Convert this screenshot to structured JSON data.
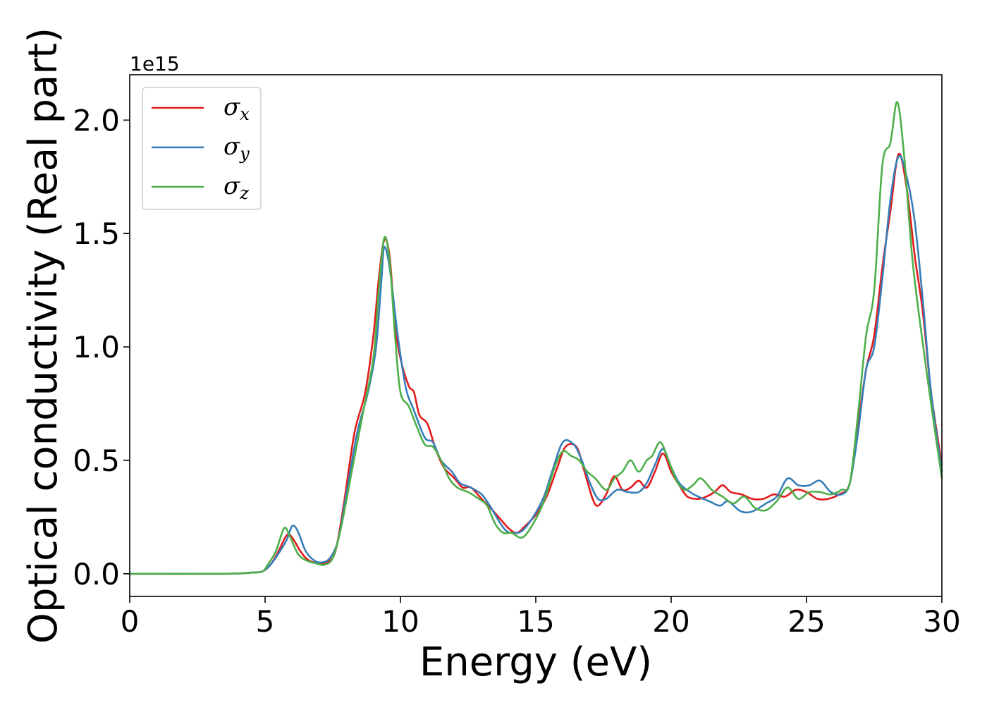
{
  "chart_data": {
    "type": "line",
    "xlabel": "Energy (eV)",
    "ylabel": "Optical conductivity (Real part)",
    "y_offset_text": "1e15",
    "xlim": [
      0,
      30
    ],
    "ylim": [
      -0.1,
      2.2
    ],
    "x_ticks": [
      0,
      5,
      10,
      15,
      20,
      25,
      30
    ],
    "x_tick_labels": [
      "0",
      "5",
      "10",
      "15",
      "20",
      "25",
      "30"
    ],
    "y_ticks": [
      0.0,
      0.5,
      1.0,
      1.5,
      2.0
    ],
    "y_tick_labels": [
      "0.0",
      "0.5",
      "1.0",
      "1.5",
      "2.0"
    ],
    "grid": false,
    "legend_position": "top-left",
    "series": [
      {
        "name": "σx",
        "legend_symbol": "σ",
        "legend_subscript": "x",
        "color": "#e41a1c",
        "points": [
          [
            0,
            0.0
          ],
          [
            3.5,
            0.0
          ],
          [
            4.5,
            0.005
          ],
          [
            4.9,
            0.01
          ],
          [
            5.2,
            0.04
          ],
          [
            5.5,
            0.1
          ],
          [
            5.8,
            0.17
          ],
          [
            6.0,
            0.16
          ],
          [
            6.3,
            0.1
          ],
          [
            6.6,
            0.06
          ],
          [
            7.0,
            0.045
          ],
          [
            7.3,
            0.05
          ],
          [
            7.6,
            0.1
          ],
          [
            7.9,
            0.3
          ],
          [
            8.3,
            0.62
          ],
          [
            8.7,
            0.8
          ],
          [
            9.0,
            1.05
          ],
          [
            9.2,
            1.3
          ],
          [
            9.4,
            1.47
          ],
          [
            9.6,
            1.4
          ],
          [
            9.8,
            1.1
          ],
          [
            10.0,
            0.95
          ],
          [
            10.3,
            0.83
          ],
          [
            10.5,
            0.8
          ],
          [
            10.7,
            0.7
          ],
          [
            11.0,
            0.66
          ],
          [
            11.3,
            0.55
          ],
          [
            11.6,
            0.47
          ],
          [
            12.0,
            0.42
          ],
          [
            12.3,
            0.38
          ],
          [
            12.6,
            0.38
          ],
          [
            13.0,
            0.33
          ],
          [
            13.4,
            0.28
          ],
          [
            13.7,
            0.24
          ],
          [
            14.0,
            0.2
          ],
          [
            14.3,
            0.18
          ],
          [
            14.6,
            0.21
          ],
          [
            15.0,
            0.26
          ],
          [
            15.4,
            0.34
          ],
          [
            15.8,
            0.47
          ],
          [
            16.1,
            0.56
          ],
          [
            16.5,
            0.56
          ],
          [
            16.8,
            0.45
          ],
          [
            17.1,
            0.33
          ],
          [
            17.3,
            0.3
          ],
          [
            17.6,
            0.35
          ],
          [
            17.9,
            0.43
          ],
          [
            18.2,
            0.37
          ],
          [
            18.5,
            0.38
          ],
          [
            18.8,
            0.41
          ],
          [
            19.1,
            0.38
          ],
          [
            19.4,
            0.45
          ],
          [
            19.7,
            0.53
          ],
          [
            20.0,
            0.45
          ],
          [
            20.3,
            0.39
          ],
          [
            20.6,
            0.34
          ],
          [
            21.0,
            0.33
          ],
          [
            21.3,
            0.34
          ],
          [
            21.6,
            0.36
          ],
          [
            21.9,
            0.39
          ],
          [
            22.2,
            0.36
          ],
          [
            22.6,
            0.35
          ],
          [
            23.0,
            0.33
          ],
          [
            23.4,
            0.33
          ],
          [
            23.8,
            0.35
          ],
          [
            24.2,
            0.34
          ],
          [
            24.6,
            0.37
          ],
          [
            25.0,
            0.36
          ],
          [
            25.4,
            0.33
          ],
          [
            25.8,
            0.33
          ],
          [
            26.2,
            0.35
          ],
          [
            26.6,
            0.4
          ],
          [
            26.9,
            0.65
          ],
          [
            27.2,
            0.9
          ],
          [
            27.5,
            1.05
          ],
          [
            27.8,
            1.35
          ],
          [
            28.1,
            1.6
          ],
          [
            28.4,
            1.85
          ],
          [
            28.7,
            1.7
          ],
          [
            29.0,
            1.4
          ],
          [
            29.3,
            1.15
          ],
          [
            29.6,
            0.8
          ],
          [
            30.0,
            0.48
          ]
        ]
      },
      {
        "name": "σy",
        "legend_symbol": "σ",
        "legend_subscript": "y",
        "color": "#377eb8",
        "points": [
          [
            0,
            0.0
          ],
          [
            3.5,
            0.0
          ],
          [
            4.5,
            0.005
          ],
          [
            4.9,
            0.01
          ],
          [
            5.2,
            0.04
          ],
          [
            5.5,
            0.09
          ],
          [
            5.8,
            0.15
          ],
          [
            6.0,
            0.21
          ],
          [
            6.2,
            0.19
          ],
          [
            6.5,
            0.1
          ],
          [
            6.8,
            0.06
          ],
          [
            7.1,
            0.05
          ],
          [
            7.4,
            0.07
          ],
          [
            7.7,
            0.15
          ],
          [
            8.0,
            0.35
          ],
          [
            8.4,
            0.62
          ],
          [
            8.8,
            0.8
          ],
          [
            9.1,
            1.0
          ],
          [
            9.3,
            1.3
          ],
          [
            9.4,
            1.44
          ],
          [
            9.6,
            1.35
          ],
          [
            9.9,
            1.05
          ],
          [
            10.2,
            0.82
          ],
          [
            10.5,
            0.72
          ],
          [
            10.9,
            0.6
          ],
          [
            11.2,
            0.58
          ],
          [
            11.5,
            0.5
          ],
          [
            11.9,
            0.45
          ],
          [
            12.2,
            0.4
          ],
          [
            12.6,
            0.38
          ],
          [
            13.0,
            0.35
          ],
          [
            13.3,
            0.3
          ],
          [
            13.6,
            0.24
          ],
          [
            13.9,
            0.19
          ],
          [
            14.2,
            0.18
          ],
          [
            14.5,
            0.19
          ],
          [
            14.9,
            0.25
          ],
          [
            15.3,
            0.34
          ],
          [
            15.6,
            0.45
          ],
          [
            16.0,
            0.58
          ],
          [
            16.4,
            0.57
          ],
          [
            16.7,
            0.5
          ],
          [
            17.0,
            0.4
          ],
          [
            17.3,
            0.33
          ],
          [
            17.6,
            0.33
          ],
          [
            18.0,
            0.37
          ],
          [
            18.4,
            0.36
          ],
          [
            18.8,
            0.36
          ],
          [
            19.1,
            0.4
          ],
          [
            19.4,
            0.48
          ],
          [
            19.7,
            0.55
          ],
          [
            20.0,
            0.47
          ],
          [
            20.3,
            0.4
          ],
          [
            20.7,
            0.36
          ],
          [
            21.0,
            0.34
          ],
          [
            21.4,
            0.32
          ],
          [
            21.8,
            0.3
          ],
          [
            22.1,
            0.32
          ],
          [
            22.5,
            0.28
          ],
          [
            22.8,
            0.27
          ],
          [
            23.1,
            0.28
          ],
          [
            23.5,
            0.31
          ],
          [
            23.9,
            0.34
          ],
          [
            24.3,
            0.42
          ],
          [
            24.7,
            0.39
          ],
          [
            25.1,
            0.39
          ],
          [
            25.5,
            0.41
          ],
          [
            25.9,
            0.36
          ],
          [
            26.3,
            0.35
          ],
          [
            26.6,
            0.4
          ],
          [
            26.9,
            0.62
          ],
          [
            27.2,
            0.9
          ],
          [
            27.5,
            1.0
          ],
          [
            27.8,
            1.3
          ],
          [
            28.1,
            1.65
          ],
          [
            28.4,
            1.84
          ],
          [
            28.7,
            1.75
          ],
          [
            29.0,
            1.55
          ],
          [
            29.3,
            1.2
          ],
          [
            29.6,
            0.8
          ],
          [
            30.0,
            0.45
          ]
        ]
      },
      {
        "name": "σz",
        "legend_symbol": "σ",
        "legend_subscript": "z",
        "color": "#4daf4a",
        "points": [
          [
            0,
            0.0
          ],
          [
            3.5,
            0.0
          ],
          [
            4.5,
            0.005
          ],
          [
            4.9,
            0.01
          ],
          [
            5.1,
            0.04
          ],
          [
            5.4,
            0.1
          ],
          [
            5.7,
            0.2
          ],
          [
            5.9,
            0.17
          ],
          [
            6.2,
            0.09
          ],
          [
            6.5,
            0.06
          ],
          [
            6.9,
            0.045
          ],
          [
            7.2,
            0.04
          ],
          [
            7.5,
            0.07
          ],
          [
            7.8,
            0.2
          ],
          [
            8.2,
            0.45
          ],
          [
            8.6,
            0.7
          ],
          [
            9.0,
            0.95
          ],
          [
            9.2,
            1.25
          ],
          [
            9.4,
            1.48
          ],
          [
            9.6,
            1.38
          ],
          [
            9.8,
            1.05
          ],
          [
            10.0,
            0.8
          ],
          [
            10.3,
            0.74
          ],
          [
            10.6,
            0.65
          ],
          [
            10.9,
            0.57
          ],
          [
            11.2,
            0.56
          ],
          [
            11.5,
            0.5
          ],
          [
            11.8,
            0.42
          ],
          [
            12.1,
            0.38
          ],
          [
            12.5,
            0.36
          ],
          [
            12.9,
            0.33
          ],
          [
            13.2,
            0.3
          ],
          [
            13.5,
            0.22
          ],
          [
            13.8,
            0.18
          ],
          [
            14.1,
            0.18
          ],
          [
            14.5,
            0.16
          ],
          [
            14.9,
            0.22
          ],
          [
            15.3,
            0.32
          ],
          [
            15.7,
            0.47
          ],
          [
            16.0,
            0.54
          ],
          [
            16.3,
            0.52
          ],
          [
            16.6,
            0.5
          ],
          [
            16.9,
            0.45
          ],
          [
            17.2,
            0.42
          ],
          [
            17.6,
            0.37
          ],
          [
            17.9,
            0.42
          ],
          [
            18.2,
            0.45
          ],
          [
            18.5,
            0.5
          ],
          [
            18.8,
            0.45
          ],
          [
            19.1,
            0.5
          ],
          [
            19.3,
            0.52
          ],
          [
            19.6,
            0.58
          ],
          [
            19.9,
            0.5
          ],
          [
            20.2,
            0.41
          ],
          [
            20.5,
            0.37
          ],
          [
            20.8,
            0.39
          ],
          [
            21.1,
            0.42
          ],
          [
            21.5,
            0.37
          ],
          [
            21.9,
            0.34
          ],
          [
            22.3,
            0.31
          ],
          [
            22.7,
            0.34
          ],
          [
            23.1,
            0.29
          ],
          [
            23.5,
            0.28
          ],
          [
            23.9,
            0.32
          ],
          [
            24.3,
            0.38
          ],
          [
            24.7,
            0.33
          ],
          [
            25.1,
            0.36
          ],
          [
            25.5,
            0.36
          ],
          [
            25.9,
            0.35
          ],
          [
            26.3,
            0.37
          ],
          [
            26.6,
            0.4
          ],
          [
            26.9,
            0.7
          ],
          [
            27.2,
            1.05
          ],
          [
            27.5,
            1.25
          ],
          [
            27.8,
            1.8
          ],
          [
            28.1,
            1.9
          ],
          [
            28.35,
            2.08
          ],
          [
            28.6,
            1.85
          ],
          [
            28.9,
            1.4
          ],
          [
            29.2,
            1.1
          ],
          [
            29.6,
            0.75
          ],
          [
            30.0,
            0.42
          ]
        ]
      }
    ]
  }
}
